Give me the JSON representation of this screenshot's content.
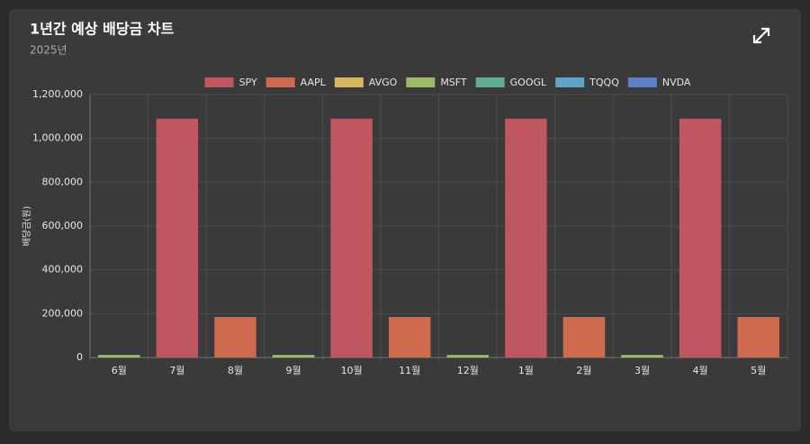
{
  "chart_data": {
    "type": "bar",
    "stacked": true,
    "title": "1년간 예상 배당금 차트",
    "subtitle": "2025년",
    "y_label": "배당금(원)",
    "categories": [
      "6월",
      "7월",
      "8월",
      "9월",
      "10월",
      "11월",
      "12월",
      "1월",
      "2월",
      "3월",
      "4월",
      "5월"
    ],
    "series": [
      {
        "name": "SPY",
        "color": "#c0565f",
        "values": [
          0,
          1090000,
          0,
          0,
          1090000,
          0,
          0,
          1090000,
          0,
          0,
          1090000,
          0
        ]
      },
      {
        "name": "AAPL",
        "color": "#cf6a4f",
        "values": [
          0,
          0,
          185000,
          0,
          0,
          185000,
          0,
          0,
          185000,
          0,
          0,
          185000
        ]
      },
      {
        "name": "AVGO",
        "color": "#d8b65f",
        "values": [
          0,
          0,
          0,
          0,
          0,
          0,
          0,
          0,
          0,
          0,
          0,
          0
        ]
      },
      {
        "name": "MSFT",
        "color": "#9bbb64",
        "values": [
          12000,
          0,
          0,
          12000,
          0,
          0,
          12000,
          0,
          0,
          12000,
          0,
          0
        ]
      },
      {
        "name": "GOOGL",
        "color": "#5fae92",
        "values": [
          0,
          0,
          0,
          0,
          0,
          0,
          0,
          0,
          0,
          0,
          0,
          0
        ]
      },
      {
        "name": "TQQQ",
        "color": "#5ea3c9",
        "values": [
          0,
          0,
          0,
          0,
          0,
          0,
          0,
          0,
          0,
          0,
          0,
          0
        ]
      },
      {
        "name": "NVDA",
        "color": "#5b7fc9",
        "values": [
          0,
          0,
          0,
          0,
          0,
          0,
          0,
          0,
          0,
          0,
          0,
          0
        ]
      }
    ],
    "ylim": [
      0,
      1200000
    ],
    "yticks": [
      0,
      {
        "value": 200000,
        "label": "200,000"
      },
      {
        "value": 400000,
        "label": "400,000"
      },
      {
        "value": 600000,
        "label": "600,000"
      },
      {
        "value": 800000,
        "label": "800,000"
      },
      {
        "value": 1000000,
        "label": "1,000,000"
      },
      {
        "value": 1200000,
        "label": "1,200,000"
      }
    ],
    "grid": true,
    "legend": "top"
  }
}
